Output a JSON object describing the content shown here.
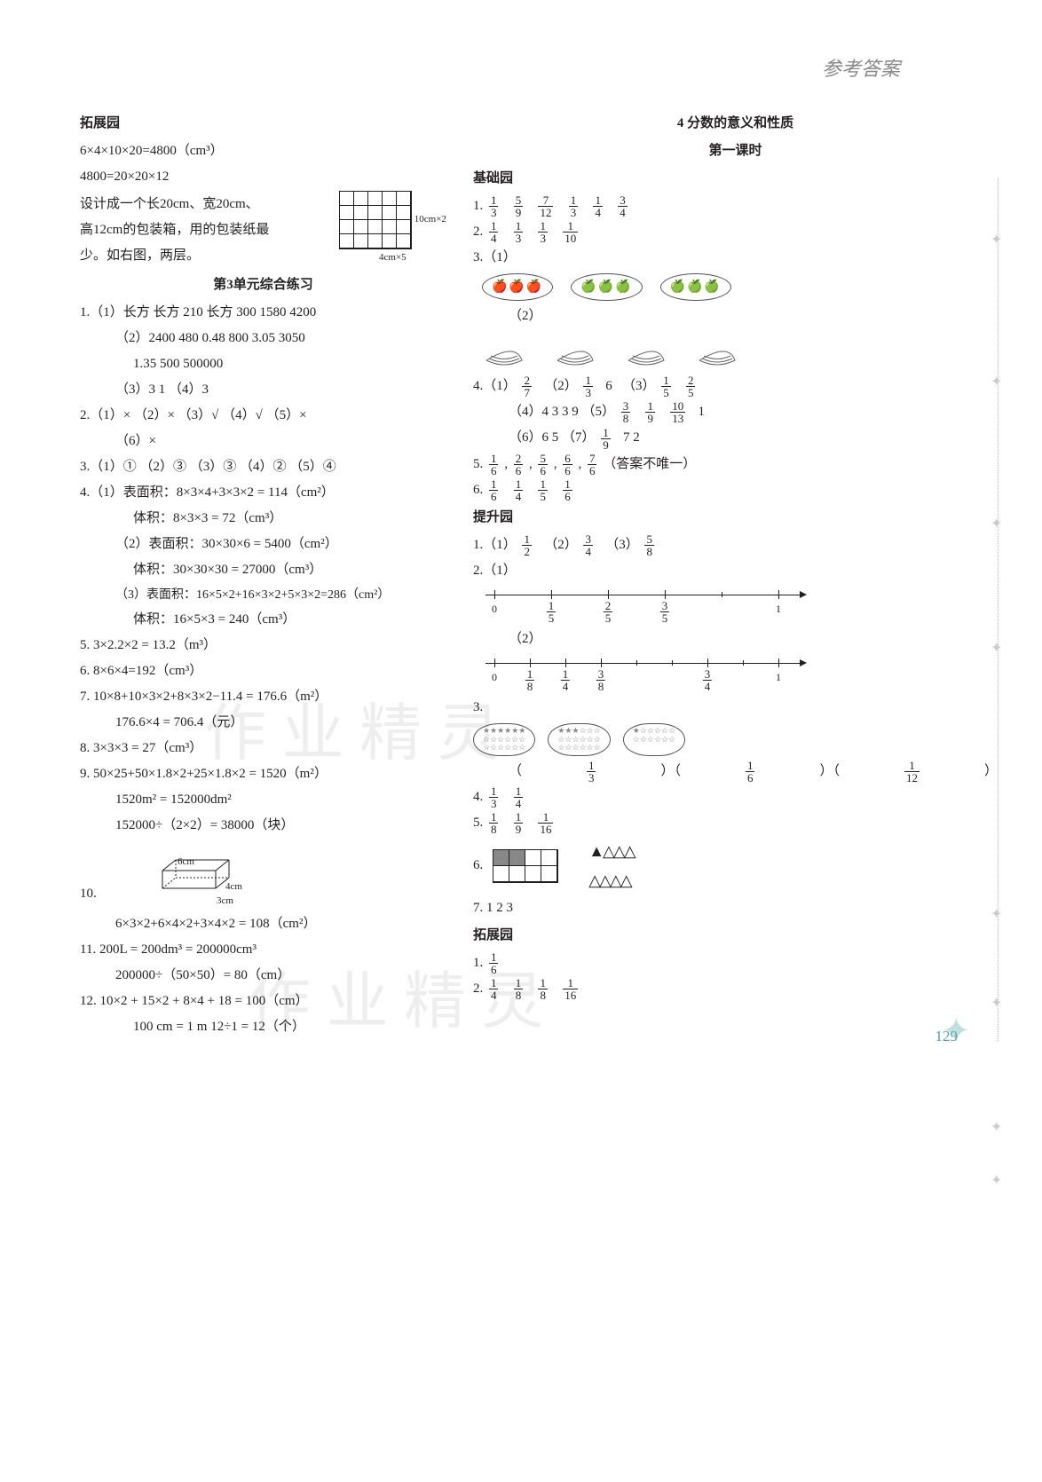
{
  "header": {
    "title": "参考答案"
  },
  "left": {
    "s1_title": "拓展园",
    "s1_l1": "6×4×10×20=4800（cm³）",
    "s1_l2": "4800=20×20×12",
    "s1_l3": "设计成一个长20cm、宽20cm、",
    "s1_l4": "高12cm的包装箱，用的包装纸最",
    "s1_l5": "少。如右图，两层。",
    "s1_dim_right": "10cm×2",
    "s1_dim_bottom": "4cm×5",
    "s2_title": "第3单元综合练习",
    "s2_q1a": "1.（1）长方    长方    210    长方    300    1580    4200",
    "s2_q1b": "（2）2400    480    0.48    800    3.05    3050",
    "s2_q1c": "1.35    500    500000",
    "s2_q1d": "（3）3    1   （4）3",
    "s2_q2": "2.（1）×   （2）×   （3）√   （4）√   （5）×",
    "s2_q2b": "（6）×",
    "s2_q3": "3.（1）①   （2）③   （3）③   （4）②   （5）④",
    "s2_q4a": "4.（1）表面积：8×3×4+3×3×2 = 114（cm²）",
    "s2_q4a2": "体积：8×3×3 = 72（cm³）",
    "s2_q4b": "（2）表面积：30×30×6 = 5400（cm²）",
    "s2_q4b2": "体积：30×30×30 = 27000（cm³）",
    "s2_q4c": "（3）表面积：16×5×2+16×3×2+5×3×2=286（cm²）",
    "s2_q4c2": "体积：16×5×3 = 240（cm³）",
    "s2_q5": "5. 3×2.2×2 = 13.2（m³）",
    "s2_q6": "6. 8×6×4=192（cm³）",
    "s2_q7": "7. 10×8+10×3×2+8×3×2−11.4 = 176.6（m²）",
    "s2_q7b": "176.6×4 = 706.4（元）",
    "s2_q8": "8. 3×3×3 = 27（cm³）",
    "s2_q9": "9. 50×25+50×1.8×2+25×1.8×2 = 1520（m²）",
    "s2_q9b": "1520m² = 152000dm²",
    "s2_q9c": "152000÷（2×2）= 38000（块）",
    "s2_q10": "10.",
    "s2_q10_6cm": "6cm",
    "s2_q10_4cm": "4cm",
    "s2_q10_3cm": "3cm",
    "s2_q10b": "6×3×2+6×4×2+3×4×2 = 108（cm²）",
    "s2_q11": "11. 200L = 200dm³ = 200000cm³",
    "s2_q11b": "200000÷（50×50）= 80（cm）",
    "s2_q12": "12. 10×2 + 15×2 + 8×4 + 18 = 100（cm）",
    "s2_q12b": "100 cm = 1 m    12÷1 = 12（个）"
  },
  "right": {
    "title_main": "4    分数的意义和性质",
    "title_lesson": "第一课时",
    "jichu": "基础园",
    "r1_prefix": "1. ",
    "r1_fracs": [
      [
        1,
        3
      ],
      [
        5,
        9
      ],
      [
        7,
        12
      ],
      [
        1,
        3
      ],
      [
        1,
        4
      ],
      [
        3,
        4
      ]
    ],
    "r2_prefix": "2. ",
    "r2_fracs": [
      [
        1,
        4
      ],
      [
        1,
        3
      ],
      [
        1,
        3
      ],
      [
        1,
        10
      ]
    ],
    "r3": "3.（1）",
    "r3b": "（2）",
    "r4a_prefix": "4.（1）",
    "r4a_f1": [
      2,
      7
    ],
    "r4a_m": "（2）",
    "r4a_f2": [
      1,
      3
    ],
    "r4a_6": "6",
    "r4a_m2": "（3）",
    "r4a_f3": [
      1,
      5
    ],
    "r4a_f4": [
      2,
      5
    ],
    "r4b": "（4）4    3    3    9   （5）",
    "r4b_f1": [
      3,
      8
    ],
    "r4b_f2": [
      1,
      9
    ],
    "r4b_f3": [
      10,
      13
    ],
    "r4b_1": "1",
    "r4c": "（6）6    5   （7）",
    "r4c_f1": [
      1,
      9
    ],
    "r4c_72": "7    2",
    "r5_prefix": "5. ",
    "r5_fracs": [
      [
        1,
        6
      ],
      [
        2,
        6
      ],
      [
        5,
        6
      ],
      [
        6,
        6
      ],
      [
        7,
        6
      ]
    ],
    "r5_note": "（答案不唯一）",
    "r6_prefix": "6. ",
    "r6_fracs": [
      [
        1,
        6
      ],
      [
        1,
        4
      ],
      [
        1,
        5
      ],
      [
        1,
        6
      ]
    ],
    "tisheng": "提升园",
    "t1_prefix": "1.（1）",
    "t1_f1": [
      1,
      2
    ],
    "t1_m1": "（2）",
    "t1_f2": [
      3,
      4
    ],
    "t1_m2": "（3）",
    "t1_f3": [
      5,
      8
    ],
    "t2a": "2.（1）",
    "nl1_0": "0",
    "nl1_ticks": [
      [
        1,
        5
      ],
      [
        2,
        5
      ],
      [
        3,
        5
      ]
    ],
    "nl1_1": "1",
    "t2b": "（2）",
    "nl2_0": "0",
    "nl2_ticks": [
      [
        1,
        8
      ],
      [
        1,
        4
      ],
      [
        3,
        8
      ],
      [
        3,
        4
      ]
    ],
    "nl2_1": "1",
    "t3": "3.",
    "t3_labels": [
      [
        1,
        3
      ],
      [
        1,
        6
      ],
      [
        1,
        12
      ]
    ],
    "t4_prefix": "4. ",
    "t4_fracs": [
      [
        1,
        3
      ],
      [
        1,
        4
      ]
    ],
    "t5_prefix": "5. ",
    "t5_fracs": [
      [
        1,
        8
      ],
      [
        1,
        9
      ],
      [
        1,
        16
      ]
    ],
    "t6": "6.",
    "t7": "7.  1    2    3",
    "tuozhan": "拓展园",
    "tz1_prefix": "1. ",
    "tz1_f": [
      1,
      6
    ],
    "tz2_prefix": "2. ",
    "tz2_fracs": [
      [
        1,
        4
      ],
      [
        1,
        8
      ],
      [
        1,
        8
      ],
      [
        1,
        16
      ]
    ]
  },
  "page_number": "129",
  "watermark": "作 业 精 灵",
  "colors": {
    "text": "#231f20",
    "header_gray": "#888888",
    "page_num": "#5a9e9e",
    "star_bg": "#c0e0e0",
    "side_star": "#cccccc"
  }
}
